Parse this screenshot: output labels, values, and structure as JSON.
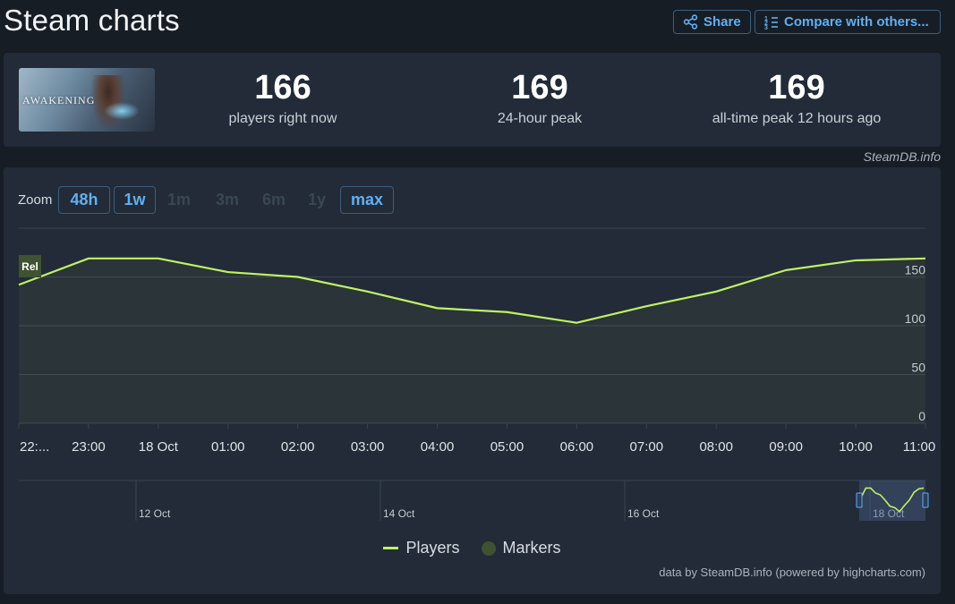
{
  "page": {
    "title": "Steam charts"
  },
  "header": {
    "share_label": "Share",
    "compare_label": "Compare with others..."
  },
  "stats": {
    "thumbnail_alt_text": "AWAKENING",
    "current": {
      "value": "166",
      "label": "players right now"
    },
    "peak_24h": {
      "value": "169",
      "label": "24-hour peak"
    },
    "all_time": {
      "value": "169",
      "label": "all-time peak 12 hours ago"
    }
  },
  "credit_top": "SteamDB.info",
  "zoom": {
    "label": "Zoom",
    "options": [
      {
        "label": "48h",
        "state": "active"
      },
      {
        "label": "1w",
        "state": "active"
      },
      {
        "label": "1m",
        "state": "disabled"
      },
      {
        "label": "3m",
        "state": "disabled"
      },
      {
        "label": "6m",
        "state": "disabled"
      },
      {
        "label": "1y",
        "state": "disabled"
      },
      {
        "label": "max",
        "state": "active"
      }
    ]
  },
  "colors": {
    "line": "#bef264",
    "marker": "#3f5232",
    "accent": "#62aff0",
    "panel": "#222b37",
    "background": "#171d25"
  },
  "chart_data": {
    "type": "line",
    "series": [
      {
        "name": "Players",
        "x": [
          "22:...",
          "23:00",
          "18 Oct",
          "01:00",
          "02:00",
          "03:00",
          "04:00",
          "05:00",
          "06:00",
          "07:00",
          "08:00",
          "09:00",
          "10:00",
          "11:00"
        ],
        "values": [
          142,
          169,
          169,
          155,
          150,
          135,
          118,
          114,
          103,
          120,
          135,
          157,
          167,
          169
        ]
      }
    ],
    "x_tick_labels": [
      "22:...",
      "23:00",
      "18 Oct",
      "01:00",
      "02:00",
      "03:00",
      "04:00",
      "05:00",
      "06:00",
      "07:00",
      "08:00",
      "09:00",
      "10:00",
      "11:00"
    ],
    "y_tick_labels": [
      "0",
      "50",
      "100",
      "150"
    ],
    "ylim": [
      0,
      200
    ],
    "grid": true,
    "markers": [
      {
        "label": "Rel"
      }
    ],
    "navigator": {
      "labels": [
        "12 Oct",
        "14 Oct",
        "16 Oct",
        "18 Oct"
      ]
    },
    "legend": {
      "position": "bottom-center",
      "items": [
        "Players",
        "Markers"
      ]
    }
  },
  "credit_bottom": "data by SteamDB.info (powered by highcharts.com)"
}
